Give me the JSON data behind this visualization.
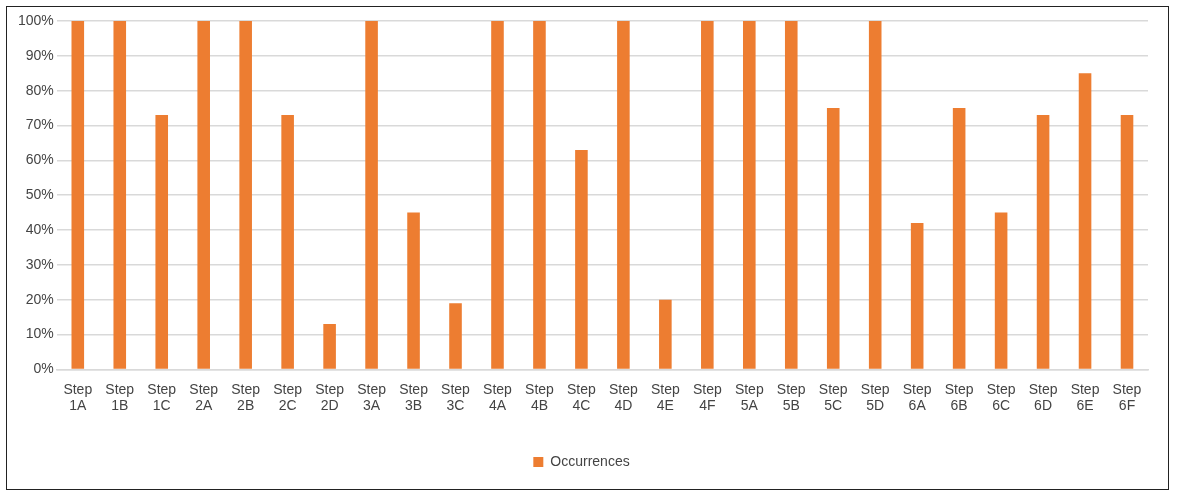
{
  "chart_data": {
    "type": "bar",
    "categories": [
      "Step 1A",
      "Step 1B",
      "Step 1C",
      "Step 2A",
      "Step 2B",
      "Step 2C",
      "Step 2D",
      "Step 3A",
      "Step 3B",
      "Step 3C",
      "Step 4A",
      "Step 4B",
      "Step 4C",
      "Step 4D",
      "Step 4E",
      "Step 4F",
      "Step 5A",
      "Step 5B",
      "Step 5C",
      "Step 5D",
      "Step 6A",
      "Step 6B",
      "Step 6C",
      "Step 6D",
      "Step 6E",
      "Step 6F"
    ],
    "series": [
      {
        "name": "Occurrences",
        "color": "#ed7d31",
        "values": [
          100,
          100,
          73,
          100,
          100,
          73,
          13,
          100,
          45,
          19,
          100,
          100,
          63,
          100,
          20,
          100,
          100,
          100,
          75,
          100,
          42,
          75,
          45,
          73,
          85,
          73
        ]
      }
    ],
    "ylim": [
      0,
      100
    ],
    "yticks": [
      {
        "value": 0,
        "label": "0%"
      },
      {
        "value": 10,
        "label": "10%"
      },
      {
        "value": 20,
        "label": "20%"
      },
      {
        "value": 30,
        "label": "30%"
      },
      {
        "value": 40,
        "label": "40%"
      },
      {
        "value": 50,
        "label": "50%"
      },
      {
        "value": 60,
        "label": "60%"
      },
      {
        "value": 70,
        "label": "70%"
      },
      {
        "value": 80,
        "label": "80%"
      },
      {
        "value": 90,
        "label": "90%"
      },
      {
        "value": 100,
        "label": "100%"
      }
    ],
    "grid": "y",
    "legend": "bottom"
  }
}
